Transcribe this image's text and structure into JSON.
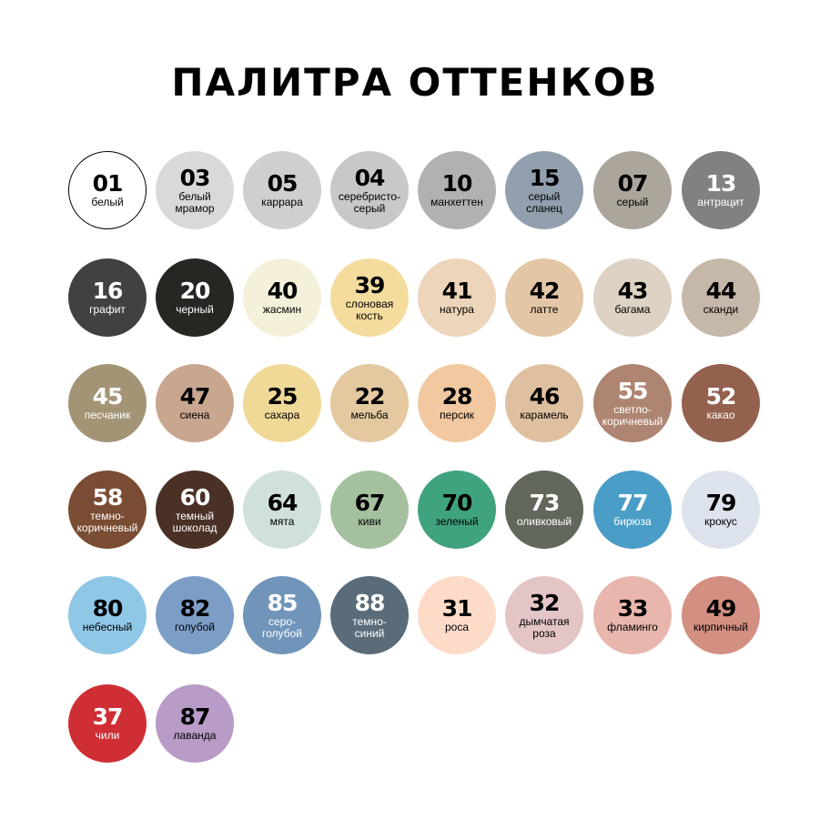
{
  "title": "ПАЛИТРА ОТТЕНКОВ",
  "swatches": [
    {
      "code": "01",
      "name": "белый",
      "color": "#ffffff",
      "text": "#000000",
      "border": true
    },
    {
      "code": "03",
      "name": "белый\nмрамор",
      "color": "#d9d9d9",
      "text": "#000000"
    },
    {
      "code": "05",
      "name": "каррара",
      "color": "#cfcfcf",
      "text": "#000000"
    },
    {
      "code": "04",
      "name": "серебристо-\nсерый",
      "color": "#c8c8c8",
      "text": "#000000"
    },
    {
      "code": "10",
      "name": "манхеттен",
      "color": "#b0b2b2",
      "text": "#000000"
    },
    {
      "code": "15",
      "name": "серый\nсланец",
      "color": "#919fae",
      "text": "#000000"
    },
    {
      "code": "07",
      "name": "серый",
      "color": "#aca59c",
      "text": "#000000"
    },
    {
      "code": "13",
      "name": "антрацит",
      "color": "#818181",
      "text": "#ffffff"
    },
    {
      "code": "16",
      "name": "графит",
      "color": "#404142",
      "text": "#ffffff"
    },
    {
      "code": "20",
      "name": "черный",
      "color": "#262622",
      "text": "#ffffff"
    },
    {
      "code": "40",
      "name": "жасмин",
      "color": "#f5f0da",
      "text": "#000000"
    },
    {
      "code": "39",
      "name": "слоновая\nкость",
      "color": "#f3dc9d",
      "text": "#000000"
    },
    {
      "code": "41",
      "name": "натура",
      "color": "#ecd5ba",
      "text": "#000000"
    },
    {
      "code": "42",
      "name": "латте",
      "color": "#e2c6a6",
      "text": "#000000"
    },
    {
      "code": "43",
      "name": "багама",
      "color": "#ddd2c3",
      "text": "#000000"
    },
    {
      "code": "44",
      "name": "сканди",
      "color": "#c6b8a8",
      "text": "#000000"
    },
    {
      "code": "45",
      "name": "песчаник",
      "color": "#a39476",
      "text": "#ffffff"
    },
    {
      "code": "47",
      "name": "сиена",
      "color": "#c9a690",
      "text": "#000000"
    },
    {
      "code": "25",
      "name": "сахара",
      "color": "#f0d897",
      "text": "#000000"
    },
    {
      "code": "22",
      "name": "мельба",
      "color": "#e4c9a0",
      "text": "#000000"
    },
    {
      "code": "28",
      "name": "персик",
      "color": "#f1c8a0",
      "text": "#000000"
    },
    {
      "code": "46",
      "name": "карамель",
      "color": "#dec0a0",
      "text": "#000000"
    },
    {
      "code": "55",
      "name": "светло-\nкоричневый",
      "color": "#ae8572",
      "text": "#ffffff"
    },
    {
      "code": "52",
      "name": "какао",
      "color": "#94614f",
      "text": "#ffffff"
    },
    {
      "code": "58",
      "name": "темно-\nкоричневый",
      "color": "#7a4c33",
      "text": "#ffffff"
    },
    {
      "code": "60",
      "name": "темный\nшоколад",
      "color": "#4a3025",
      "text": "#ffffff"
    },
    {
      "code": "64",
      "name": "мята",
      "color": "#cfe1da",
      "text": "#000000"
    },
    {
      "code": "67",
      "name": "киви",
      "color": "#a4c09f",
      "text": "#000000"
    },
    {
      "code": "70",
      "name": "зеленый",
      "color": "#3fa37e",
      "text": "#000000"
    },
    {
      "code": "73",
      "name": "оливковый",
      "color": "#61675b",
      "text": "#ffffff"
    },
    {
      "code": "77",
      "name": "бирюза",
      "color": "#4a9dc7",
      "text": "#ffffff"
    },
    {
      "code": "79",
      "name": "крокус",
      "color": "#dde3ec",
      "text": "#000000"
    },
    {
      "code": "80",
      "name": "небесный",
      "color": "#8fc7e7",
      "text": "#000000"
    },
    {
      "code": "82",
      "name": "голубой",
      "color": "#7c9dc6",
      "text": "#000000"
    },
    {
      "code": "85",
      "name": "серо-\nголубой",
      "color": "#7195ba",
      "text": "#ffffff"
    },
    {
      "code": "88",
      "name": "темно-\nсиний",
      "color": "#5a6c79",
      "text": "#ffffff"
    },
    {
      "code": "31",
      "name": "роса",
      "color": "#fcdcc9",
      "text": "#000000"
    },
    {
      "code": "32",
      "name": "дымчатая\nроза",
      "color": "#e4c5c6",
      "text": "#000000"
    },
    {
      "code": "33",
      "name": "фламинго",
      "color": "#e8b6ad",
      "text": "#000000"
    },
    {
      "code": "49",
      "name": "кирпичный",
      "color": "#d28f82",
      "text": "#000000"
    },
    {
      "code": "37",
      "name": "чили",
      "color": "#d02e35",
      "text": "#ffffff"
    },
    {
      "code": "87",
      "name": "лаванда",
      "color": "#b89bc6",
      "text": "#000000"
    }
  ]
}
